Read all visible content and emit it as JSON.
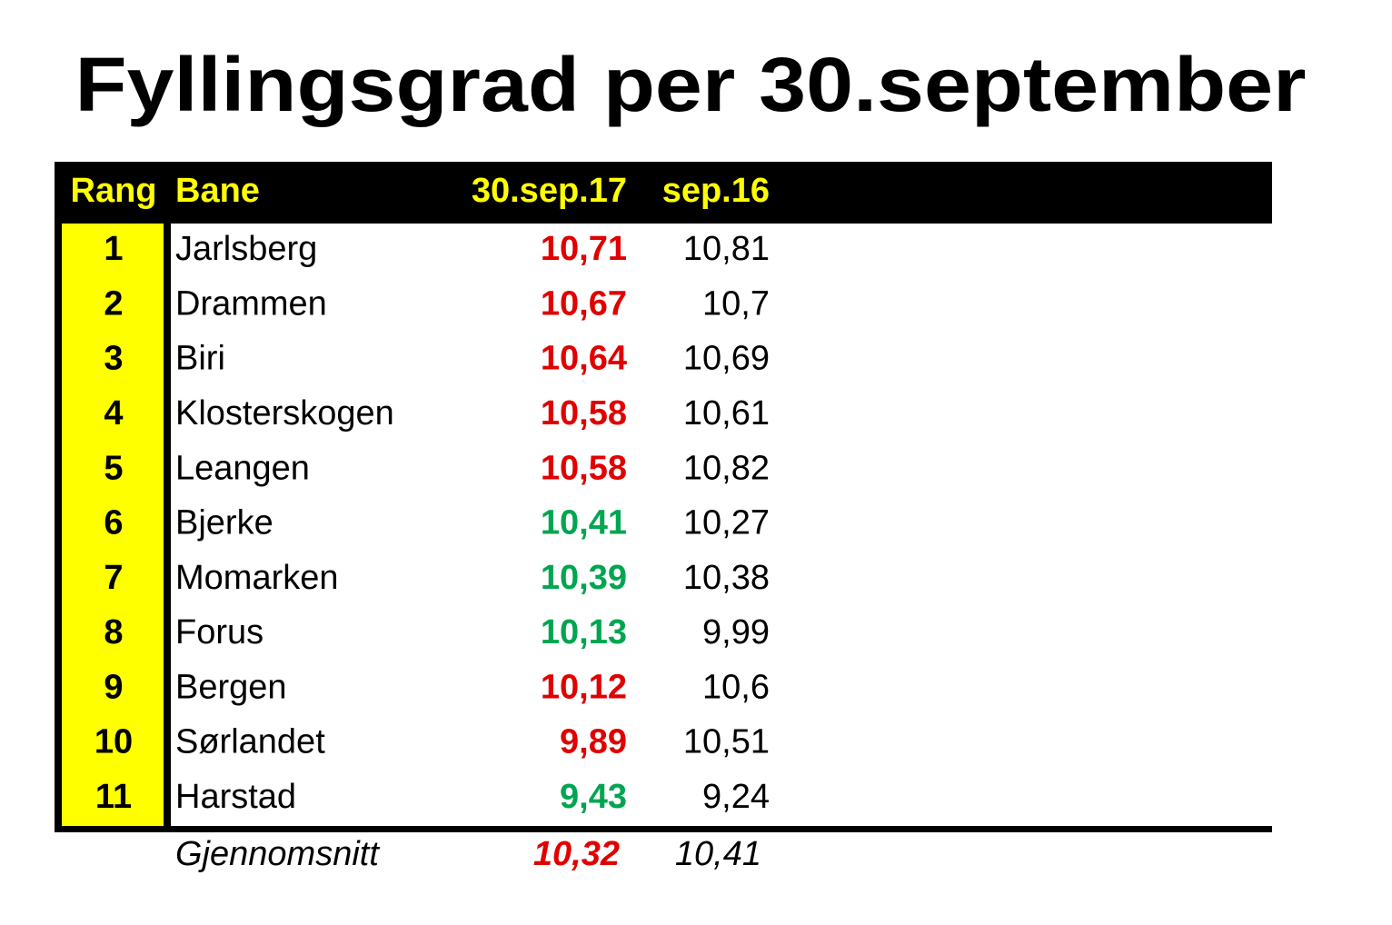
{
  "title": "Fyllingsgrad per 30.september",
  "table": {
    "header": [
      "Rang",
      "Bane",
      "30.sep.17",
      "sep.16"
    ],
    "rows": [
      {
        "rank": 1,
        "name": "Jarlsberg",
        "sep17": "10,71",
        "sep16": "10,81",
        "color": "#e00000"
      },
      {
        "rank": 2,
        "name": "Drammen",
        "sep17": "10,67",
        "sep16": "10,7",
        "color": "#e00000"
      },
      {
        "rank": 3,
        "name": "Biri",
        "sep17": "10,64",
        "sep16": "10,69",
        "color": "#e00000"
      },
      {
        "rank": 4,
        "name": "Klosterskogen",
        "sep17": "10,58",
        "sep16": "10,61",
        "color": "#e00000"
      },
      {
        "rank": 5,
        "name": "Leangen",
        "sep17": "10,58",
        "sep16": "10,82",
        "color": "#e00000"
      },
      {
        "rank": 6,
        "name": "Bjerke",
        "sep17": "10,41",
        "sep16": "10,27",
        "color": "#00a550"
      },
      {
        "rank": 7,
        "name": "Momarken",
        "sep17": "10,39",
        "sep16": "10,38",
        "color": "#00a550"
      },
      {
        "rank": 8,
        "name": "Forus",
        "sep17": "10,13",
        "sep16": "9,99",
        "color": "#00a550"
      },
      {
        "rank": 9,
        "name": "Bergen",
        "sep17": "10,12",
        "sep16": "10,6",
        "color": "#e00000"
      },
      {
        "rank": 10,
        "name": "Sørlandet",
        "sep17": "9,89",
        "sep16": "10,51",
        "color": "#e00000"
      },
      {
        "rank": 11,
        "name": "Harstad",
        "sep17": "9,43",
        "sep16": "9,24",
        "color": "#00a550"
      }
    ],
    "footer": {
      "label": "Gjennomsnitt",
      "sep17": "10,32",
      "sep16": "10,41",
      "color": "#e00000"
    }
  }
}
